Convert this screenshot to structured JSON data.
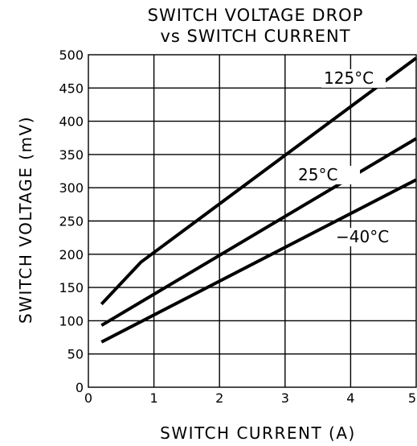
{
  "chart_data": {
    "type": "line",
    "title_line1": "SWITCH VOLTAGE DROP",
    "title_line2": "vs SWITCH CURRENT",
    "xlabel": "SWITCH CURRENT (A)",
    "ylabel": "SWITCH VOLTAGE (mV)",
    "xlim": [
      0,
      5
    ],
    "ylim": [
      0,
      500
    ],
    "xticks": [
      "0",
      "1",
      "2",
      "3",
      "4",
      "5"
    ],
    "yticks": [
      "0",
      "50",
      "100",
      "150",
      "200",
      "250",
      "300",
      "350",
      "400",
      "450",
      "500"
    ],
    "grid": true,
    "series": [
      {
        "name": "125°C",
        "points": [
          [
            0.2,
            125
          ],
          [
            0.8,
            188
          ],
          [
            5.0,
            495
          ]
        ]
      },
      {
        "name": "25°C",
        "points": [
          [
            0.2,
            93
          ],
          [
            5.0,
            374
          ]
        ]
      },
      {
        "name": "−40°C",
        "points": [
          [
            0.2,
            68
          ],
          [
            5.0,
            312
          ]
        ]
      }
    ]
  }
}
